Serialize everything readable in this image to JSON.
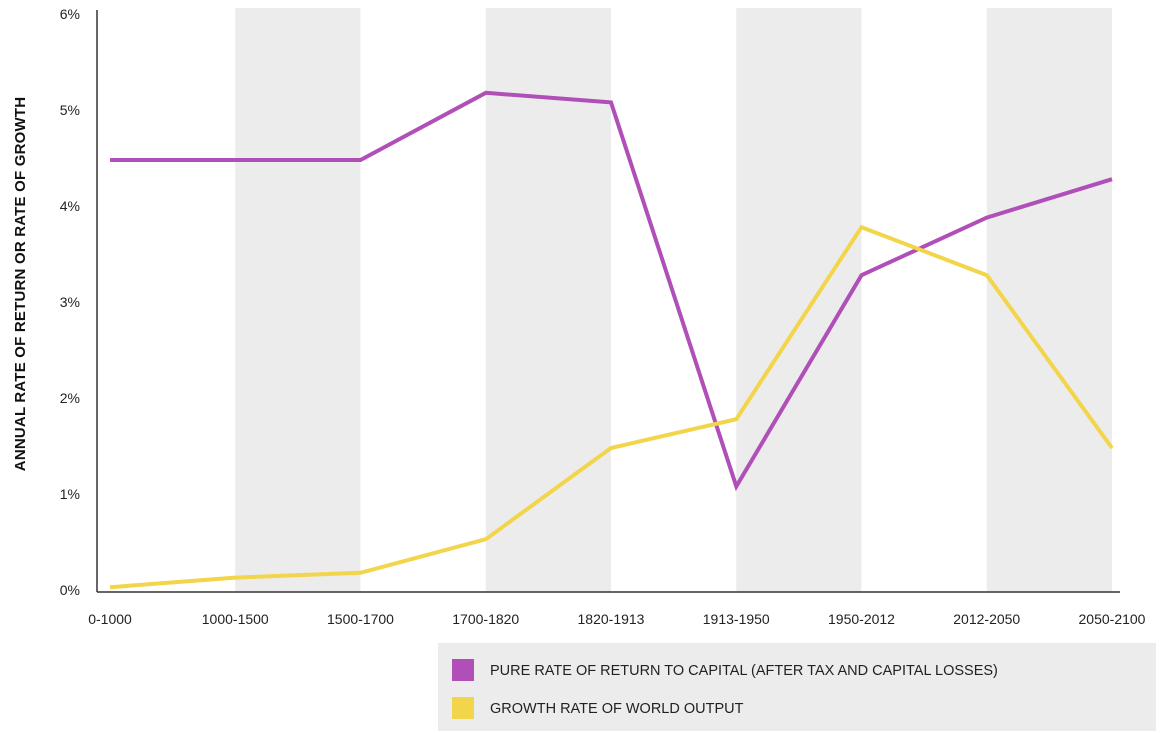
{
  "chart_data": {
    "type": "line",
    "categories": [
      "0-1000",
      "1000-1500",
      "1500-1700",
      "1700-1820",
      "1820-1913",
      "1913-1950",
      "1950-2012",
      "2012-2050",
      "2050-2100"
    ],
    "series": [
      {
        "name": "PURE RATE OF RETURN TO CAPITAL (AFTER TAX AND CAPITAL LOSSES)",
        "color": "#b04fb8",
        "values": [
          4.5,
          4.5,
          4.5,
          5.2,
          5.1,
          1.1,
          3.3,
          3.9,
          4.3
        ]
      },
      {
        "name": "GROWTH RATE OF WORLD OUTPUT",
        "color": "#f2d54a",
        "values": [
          0.05,
          0.15,
          0.2,
          0.55,
          1.5,
          1.8,
          3.8,
          3.3,
          1.5
        ]
      }
    ],
    "xlabel": "",
    "ylabel": "ANNUAL RATE OF RETURN OR RATE OF GROWTH",
    "ylim": [
      0,
      6
    ],
    "yticks": [
      "0%",
      "1%",
      "2%",
      "3%",
      "4%",
      "5%",
      "6%"
    ],
    "shaded_bands": "alternating",
    "band_color": "#ececec",
    "legend_position": "bottom-right",
    "legend_background": "#ececec",
    "grid": false
  }
}
